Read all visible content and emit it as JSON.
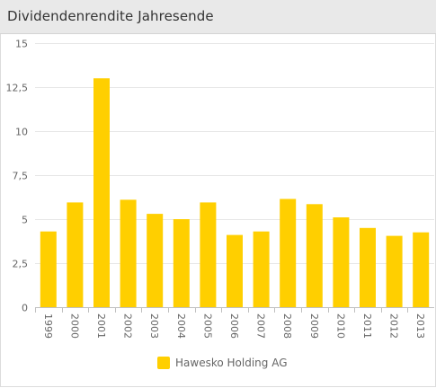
{
  "header": {
    "title": "Dividendenrendite Jahresende"
  },
  "colors": {
    "bar": "#FFCF00",
    "grid": "#e6e6e6",
    "axis_text": "#666666",
    "header_bg": "#e9e9e9"
  },
  "chart_data": {
    "type": "bar",
    "title": "Dividendenrendite Jahresende",
    "xlabel": "",
    "ylabel": "",
    "categories": [
      "1999",
      "2000",
      "2001",
      "2002",
      "2003",
      "2004",
      "2005",
      "2006",
      "2007",
      "2008",
      "2009",
      "2010",
      "2011",
      "2012",
      "2013"
    ],
    "series": [
      {
        "name": "Hawesko Holding AG",
        "values": [
          4.3,
          5.95,
          13.0,
          6.1,
          5.3,
          5.0,
          5.95,
          4.1,
          4.3,
          6.15,
          5.85,
          5.1,
          4.5,
          4.05,
          4.25
        ]
      }
    ],
    "ylim": [
      0,
      15
    ],
    "yticks": [
      "0",
      "2,5",
      "5",
      "7,5",
      "10",
      "12,5",
      "15"
    ],
    "grid": true,
    "legend": "bottom-center"
  }
}
